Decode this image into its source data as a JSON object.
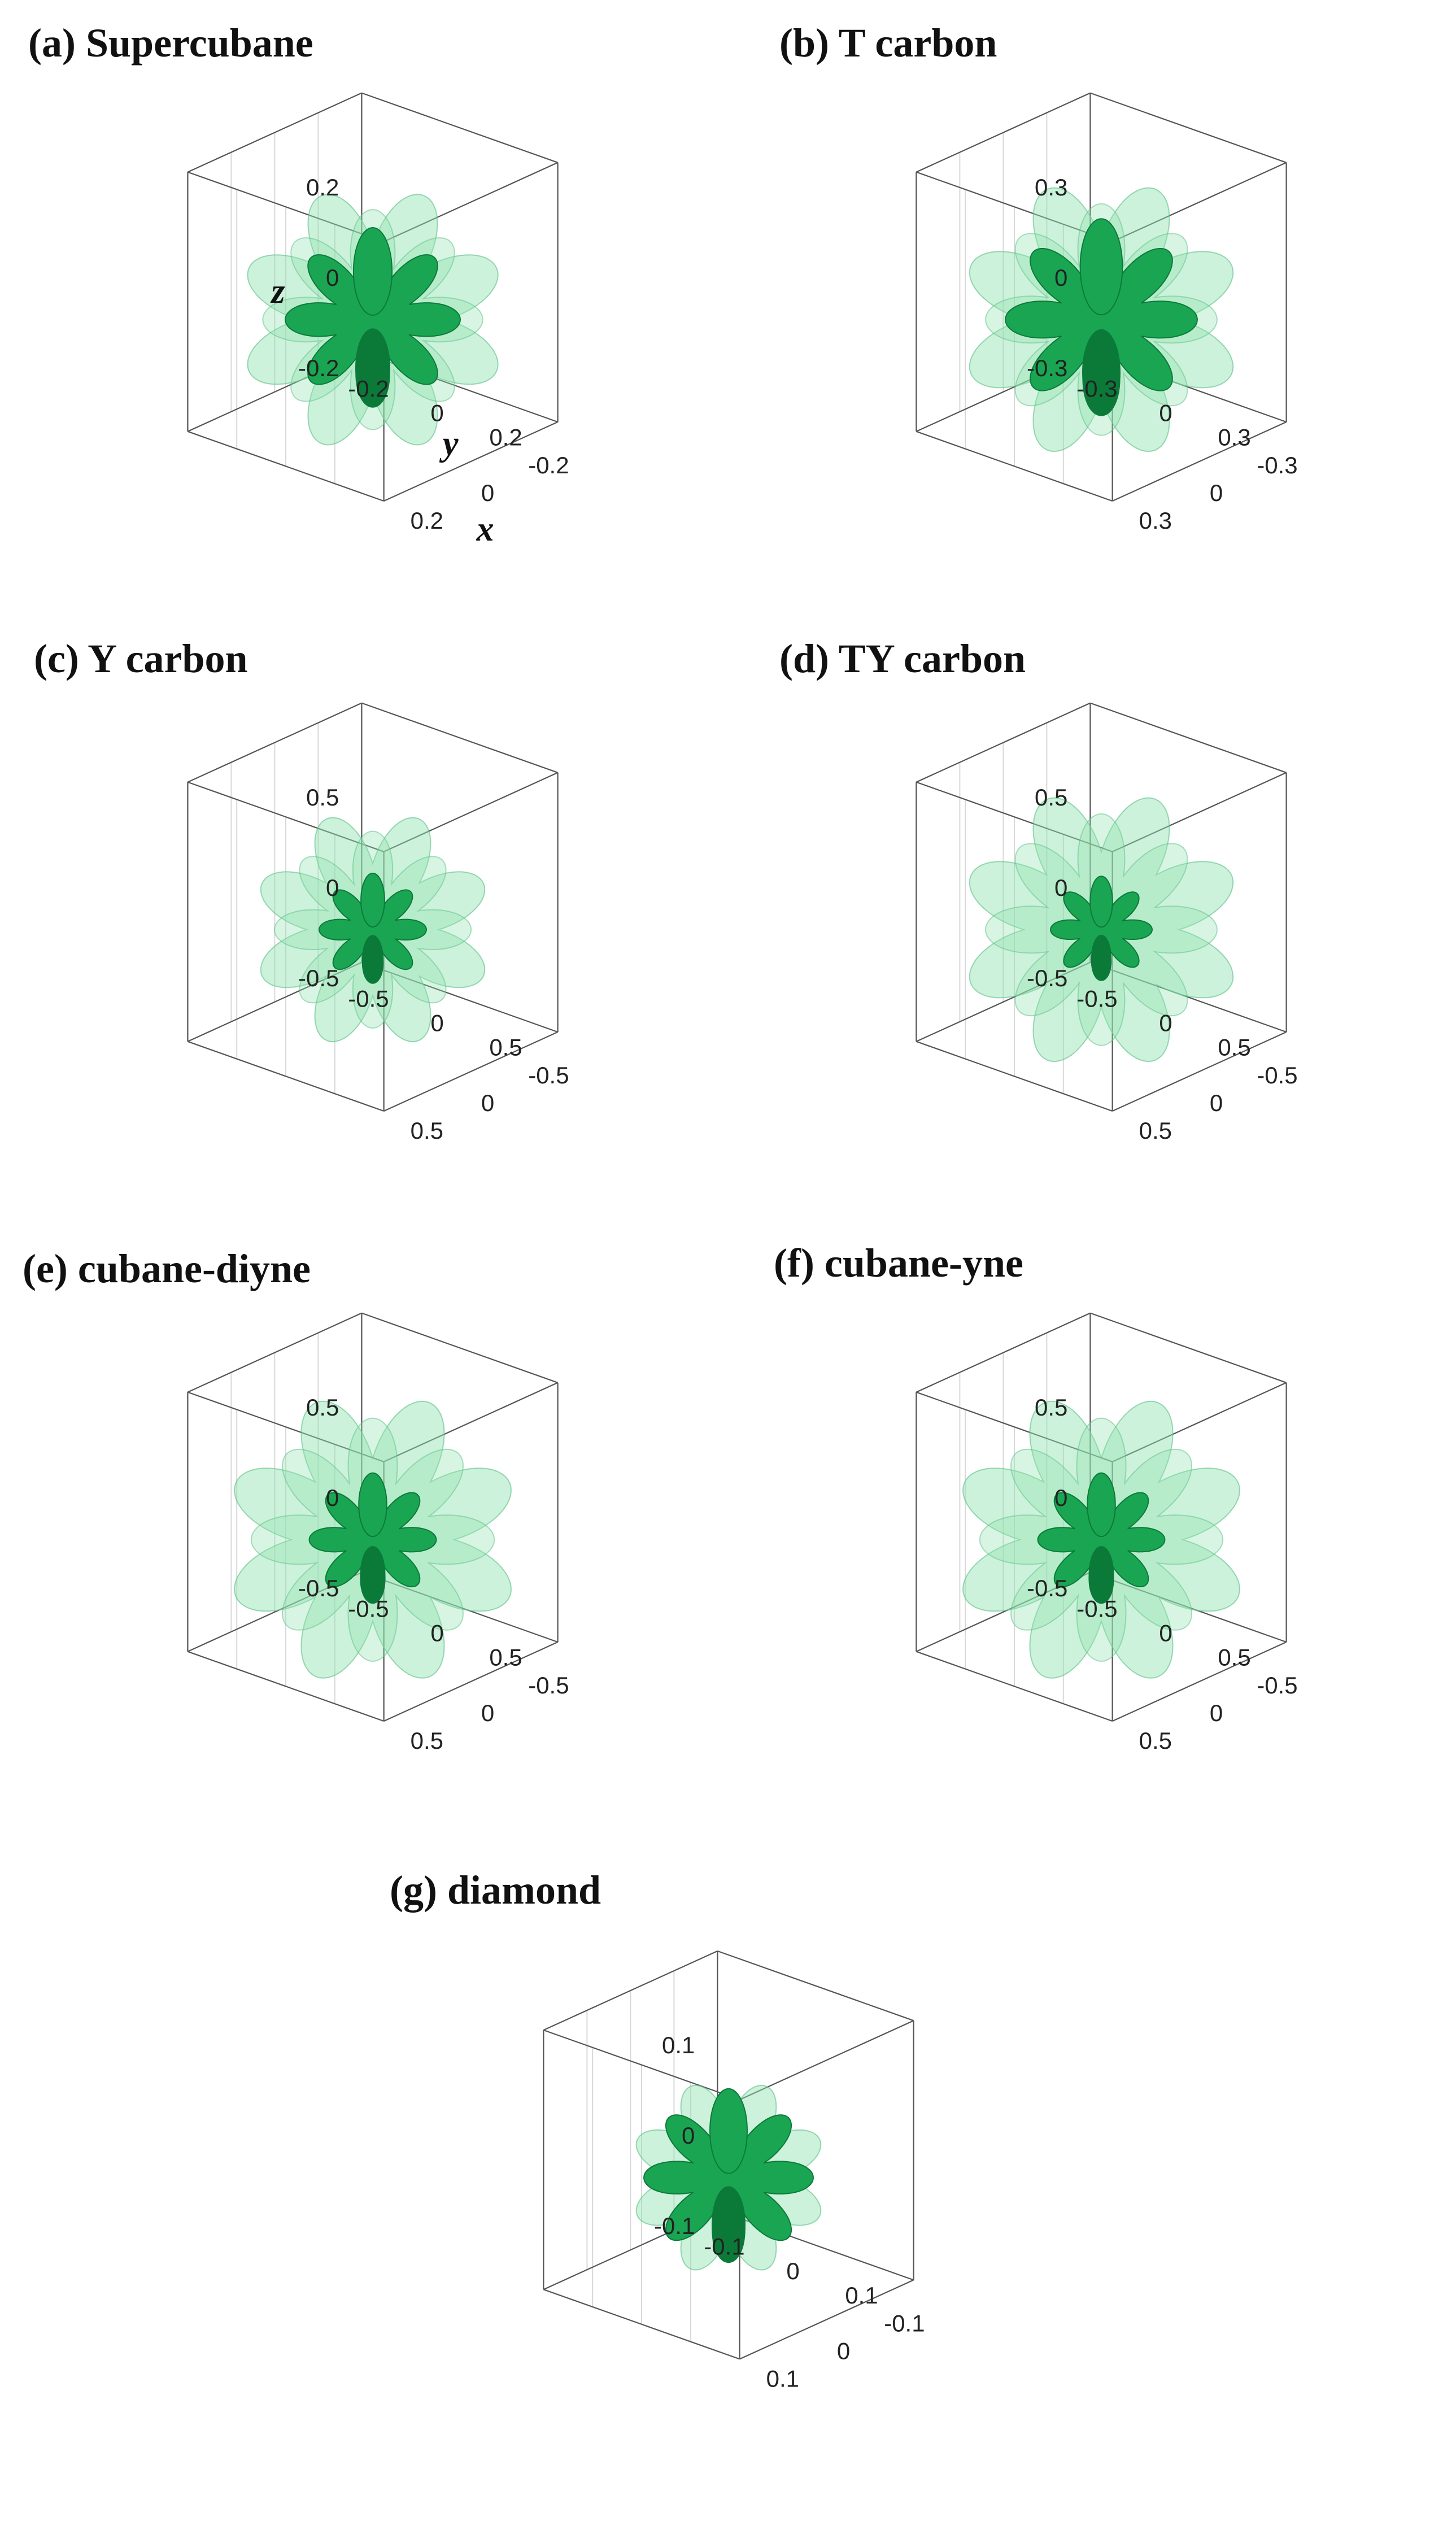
{
  "figure": {
    "panels": [
      {
        "id": "a",
        "title": "(a) Supercubane",
        "ticks": {
          "z": [
            "0.2",
            "0",
            "-0.2"
          ],
          "y": [
            "-0.2",
            "0",
            "0.2"
          ],
          "x": [
            "-0.2",
            "0",
            "0.2"
          ]
        },
        "axis_names": {
          "z": "z",
          "y": "y",
          "x": "x"
        },
        "outer_lobe": 0.95,
        "inner_lobe": 0.62
      },
      {
        "id": "b",
        "title": "(b) T carbon",
        "ticks": {
          "z": [
            "0.3",
            "0",
            "-0.3"
          ],
          "y": [
            "-0.3",
            "0",
            "0.3"
          ],
          "x": [
            "-0.3",
            "0",
            "0.3"
          ]
        },
        "axis_names": {
          "z": "",
          "y": "",
          "x": ""
        },
        "outer_lobe": 1.0,
        "inner_lobe": 0.68
      },
      {
        "id": "c",
        "title": "(c) Y carbon",
        "ticks": {
          "z": [
            "0.5",
            "0",
            "-0.5"
          ],
          "y": [
            "-0.5",
            "0",
            "0.5"
          ],
          "x": [
            "-0.5",
            "0",
            "0.5"
          ]
        },
        "axis_names": {
          "z": "",
          "y": "",
          "x": ""
        },
        "outer_lobe": 0.85,
        "inner_lobe": 0.38
      },
      {
        "id": "d",
        "title": "(d) TY carbon",
        "ticks": {
          "z": [
            "0.5",
            "0",
            "-0.5"
          ],
          "y": [
            "-0.5",
            "0",
            "0.5"
          ],
          "x": [
            "-0.5",
            "0",
            "0.5"
          ]
        },
        "axis_names": {
          "z": "",
          "y": "",
          "x": ""
        },
        "outer_lobe": 1.0,
        "inner_lobe": 0.36
      },
      {
        "id": "e",
        "title": "(e) cubane-diyne",
        "ticks": {
          "z": [
            "0.5",
            "0",
            "-0.5"
          ],
          "y": [
            "-0.5",
            "0",
            "0.5"
          ],
          "x": [
            "-0.5",
            "0",
            "0.5"
          ]
        },
        "axis_names": {
          "z": "",
          "y": "",
          "x": ""
        },
        "outer_lobe": 1.05,
        "inner_lobe": 0.45
      },
      {
        "id": "f",
        "title": "(f) cubane-yne",
        "ticks": {
          "z": [
            "0.5",
            "0",
            "-0.5"
          ],
          "y": [
            "-0.5",
            "0",
            "0.5"
          ],
          "x": [
            "-0.5",
            "0",
            "0.5"
          ]
        },
        "axis_names": {
          "z": "",
          "y": "",
          "x": ""
        },
        "outer_lobe": 1.05,
        "inner_lobe": 0.45
      },
      {
        "id": "g",
        "title": "(g) diamond",
        "ticks": {
          "z": [
            "0.1",
            "0",
            "-0.1"
          ],
          "y": [
            "-0.1",
            "0",
            "0.1"
          ],
          "x": [
            "-0.1",
            "0",
            "0.1"
          ]
        },
        "axis_names": {
          "z": "",
          "y": "",
          "x": ""
        },
        "outer_lobe": 0.7,
        "inner_lobe": 0.6
      }
    ],
    "colors": {
      "outer_surface": "#8fe3b0",
      "inner_surface": "#1aa552",
      "inner_dark": "#0b7a39",
      "box": "#555555",
      "grid": "#d8d8d8"
    }
  }
}
